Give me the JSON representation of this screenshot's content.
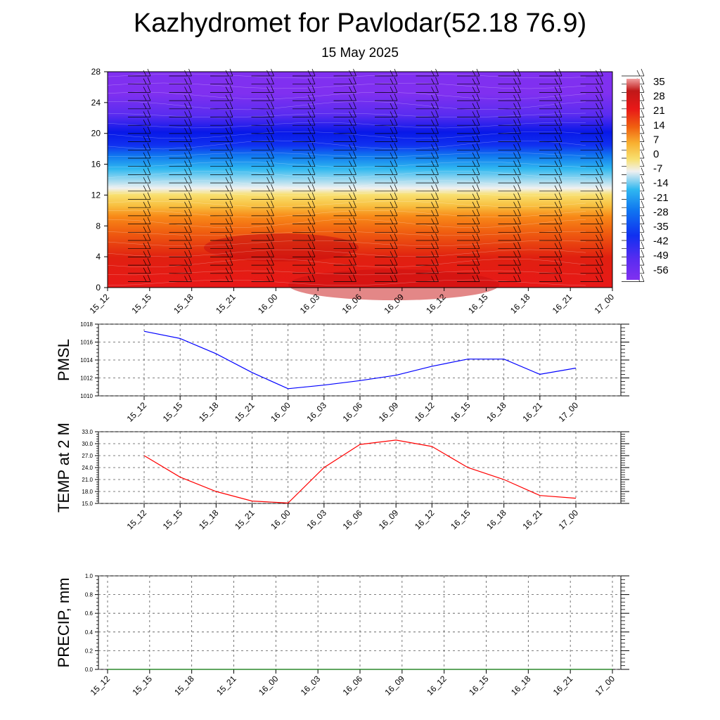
{
  "header": {
    "title": "Kazhydromet for Pavlodar(52.18 76.9)",
    "subtitle": "15 May 2025"
  },
  "chart_data": [
    {
      "type": "heatmap",
      "description_key": "temperature-height-section",
      "x_ticks": [
        "15_12",
        "15_15",
        "15_18",
        "15_21",
        "16_00",
        "16_03",
        "16_06",
        "16_09",
        "16_12",
        "16_15",
        "16_18",
        "16_21",
        "17_00"
      ],
      "y_ticks": [
        "0",
        "4",
        "8",
        "12",
        "16",
        "20",
        "24",
        "28"
      ],
      "ylim": [
        0,
        28
      ],
      "colorbar": {
        "labels": [
          "35",
          "28",
          "21",
          "14",
          "7",
          "0",
          "-7",
          "-14",
          "-21",
          "-28",
          "-35",
          "-42",
          "-49",
          "-56"
        ]
      },
      "colors": {
        "high": "#f0a0a0",
        "warm": "#e81818",
        "orange": "#f06010",
        "yellow": "#f8e070",
        "light": "#f0f0f0",
        "cyan": "#30b8f0",
        "blue": "#1030f0",
        "purple": "#8030f0"
      }
    },
    {
      "type": "line",
      "ylabel": "PMSL",
      "x": [
        "15_12",
        "15_15",
        "15_18",
        "15_21",
        "16_00",
        "16_03",
        "16_06",
        "16_09",
        "16_12",
        "16_15",
        "16_18",
        "16_21",
        "17_00"
      ],
      "y_ticks": [
        "1010",
        "1012",
        "1014",
        "1016",
        "1018"
      ],
      "ylim": [
        1010,
        1018
      ],
      "series": [
        {
          "values": [
            1017.2,
            1016.4,
            1014.7,
            1012.6,
            1010.8,
            1011.2,
            1011.7,
            1012.3,
            1013.3,
            1014.1,
            1014.1,
            1012.4,
            1013.1
          ],
          "color": "#0000ff"
        }
      ],
      "grid": true
    },
    {
      "type": "line",
      "ylabel": "TEMP at 2 M",
      "x": [
        "15_12",
        "15_15",
        "15_18",
        "15_21",
        "16_00",
        "16_03",
        "16_06",
        "16_09",
        "16_12",
        "16_15",
        "16_18",
        "16_21",
        "17_00"
      ],
      "y_ticks": [
        "15.0",
        "18.0",
        "21.0",
        "24.0",
        "27.0",
        "30.0",
        "33.0"
      ],
      "ylim": [
        15,
        33
      ],
      "series": [
        {
          "values": [
            27.0,
            21.6,
            18.0,
            15.6,
            15.1,
            24.0,
            29.8,
            30.9,
            29.3,
            24.0,
            21.0,
            17.0,
            16.3
          ],
          "color": "#ff0000"
        }
      ],
      "grid": true
    },
    {
      "type": "line",
      "ylabel": "PRECIP, mm",
      "x": [
        "15_12",
        "15_15",
        "15_18",
        "15_21",
        "16_00",
        "16_03",
        "16_06",
        "16_09",
        "16_12",
        "16_15",
        "16_18",
        "16_21",
        "17_00"
      ],
      "y_ticks": [
        "0.0",
        "0.2",
        "0.4",
        "0.6",
        "0.8",
        "1.0"
      ],
      "ylim": [
        0,
        1
      ],
      "series": [
        {
          "values": [
            0,
            0,
            0,
            0,
            0,
            0,
            0,
            0,
            0,
            0,
            0,
            0,
            0
          ],
          "color": "#007000"
        }
      ],
      "grid": true
    }
  ]
}
